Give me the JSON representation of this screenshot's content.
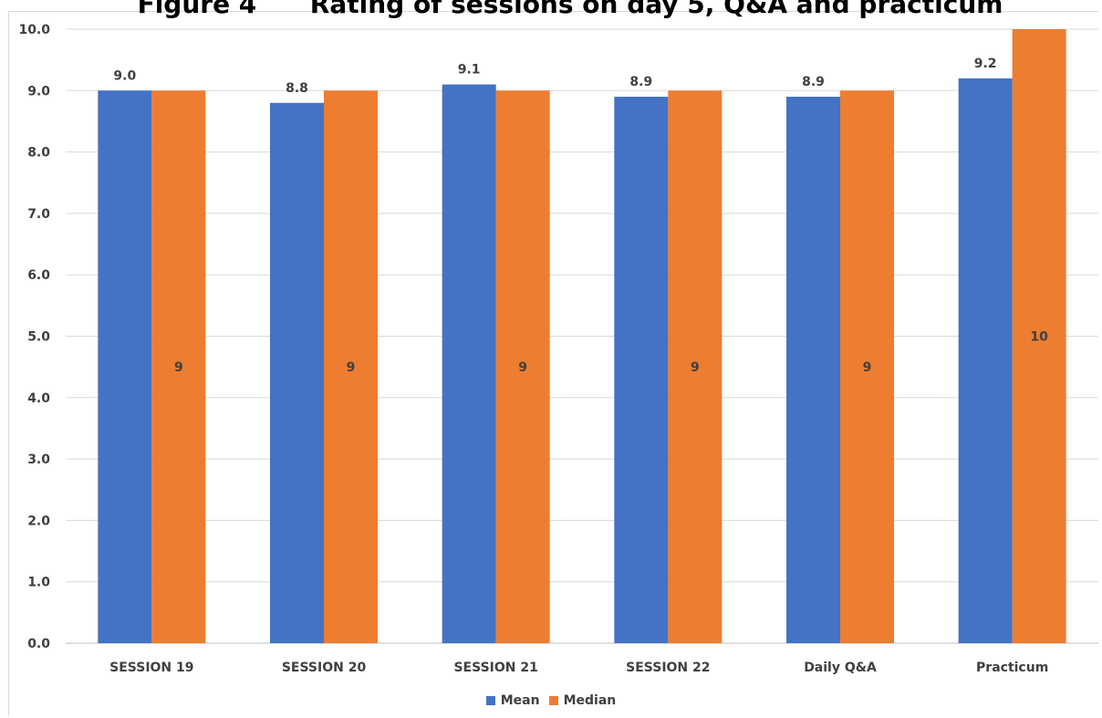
{
  "chart_data": {
    "type": "bar",
    "title": "Figure 4      Rating of sessions on day 5, Q&A and practicum",
    "categories": [
      "SESSION 19",
      "SESSION 20",
      "SESSION 21",
      "SESSION 22",
      "Daily Q&A",
      "Practicum"
    ],
    "series": [
      {
        "name": "Mean",
        "color": "#4472C4",
        "values": [
          9.0,
          8.8,
          9.1,
          8.9,
          8.9,
          9.2
        ],
        "labels": [
          "9.0",
          "8.8",
          "9.1",
          "8.9",
          "8.9",
          "9.2"
        ]
      },
      {
        "name": "Median",
        "color": "#ED7D31",
        "values": [
          9,
          9,
          9,
          9,
          9,
          10
        ],
        "labels": [
          "9",
          "9",
          "9",
          "9",
          "9",
          "10"
        ]
      }
    ],
    "ylim": [
      0,
      10
    ],
    "yticks": [
      "0.0",
      "1.0",
      "2.0",
      "3.0",
      "4.0",
      "5.0",
      "6.0",
      "7.0",
      "8.0",
      "9.0",
      "10.0"
    ],
    "grid": true,
    "legend": "bottom"
  }
}
